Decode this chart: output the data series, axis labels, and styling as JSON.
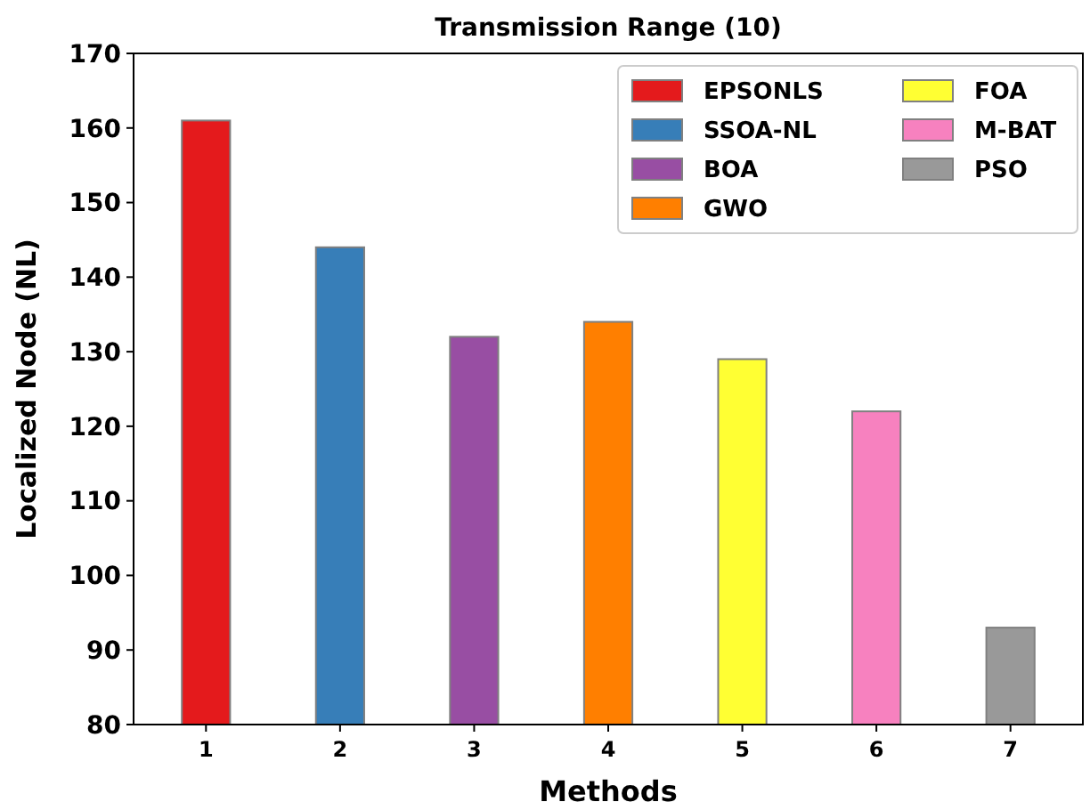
{
  "chart_data": {
    "type": "bar",
    "title": "Transmission Range (10)",
    "xlabel": "Methods",
    "ylabel": "Localized Node (NL)",
    "categories": [
      "1",
      "2",
      "3",
      "4",
      "5",
      "6",
      "7"
    ],
    "series": [
      {
        "name": "EPSONLS",
        "color": "#e41a1c",
        "values": [
          161,
          null,
          null,
          null,
          null,
          null,
          null
        ]
      },
      {
        "name": "SSOA-NL",
        "color": "#377eb8",
        "values": [
          null,
          144,
          null,
          null,
          null,
          null,
          null
        ]
      },
      {
        "name": "BOA",
        "color": "#984ea3",
        "values": [
          null,
          null,
          132,
          null,
          null,
          null,
          null
        ]
      },
      {
        "name": "GWO",
        "color": "#ff7f00",
        "values": [
          null,
          null,
          null,
          134,
          null,
          null,
          null
        ]
      },
      {
        "name": "FOA",
        "color": "#ffff33",
        "values": [
          null,
          null,
          null,
          null,
          129,
          null,
          null
        ]
      },
      {
        "name": "M-BAT",
        "color": "#f781bf",
        "values": [
          null,
          null,
          null,
          null,
          null,
          122,
          null
        ]
      },
      {
        "name": "PSO",
        "color": "#999999",
        "values": [
          null,
          null,
          null,
          null,
          null,
          null,
          93
        ]
      }
    ],
    "ylim": [
      80,
      170
    ],
    "yticks": [
      80,
      90,
      100,
      110,
      120,
      130,
      140,
      150,
      160,
      170
    ],
    "grid": false,
    "legend": "top right"
  }
}
